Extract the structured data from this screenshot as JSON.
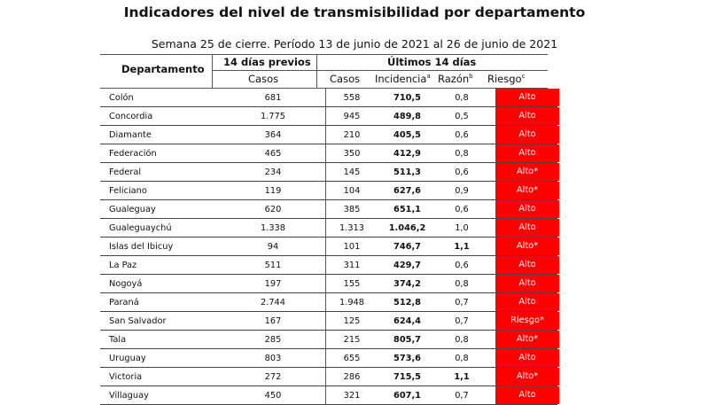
{
  "title": "Indicadores del nivel de transmisibilidad por departamento",
  "subtitle": "Semana 25 de cierre. Período 13 de junio de 2021 al 26 de junio de 2021",
  "headers": {
    "departamento": "Departamento",
    "previos": "14 días previos",
    "previos_casos": "Casos",
    "ultimos": "Últimos 14 días",
    "casos": "Casos",
    "incidencia": "Incidencia",
    "incidencia_sup": "a",
    "razon": "Razón",
    "razon_sup": "b",
    "riesgo": "Riesgo",
    "riesgo_sup": "c"
  },
  "rows": [
    {
      "departamento": "Colón",
      "previos": "681",
      "casos": "558",
      "incidencia": "710,5",
      "razon": "0,8",
      "razon_bold": false,
      "riesgo": "Alto"
    },
    {
      "departamento": "Concordia",
      "previos": "1.775",
      "casos": "945",
      "incidencia": "489,8",
      "razon": "0,5",
      "razon_bold": false,
      "riesgo": "Alto"
    },
    {
      "departamento": "Diamante",
      "previos": "364",
      "casos": "210",
      "incidencia": "405,5",
      "razon": "0,6",
      "razon_bold": false,
      "riesgo": "Alto"
    },
    {
      "departamento": "Federación",
      "previos": "465",
      "casos": "350",
      "incidencia": "412,9",
      "razon": "0,8",
      "razon_bold": false,
      "riesgo": "Alto"
    },
    {
      "departamento": "Federal",
      "previos": "234",
      "casos": "145",
      "incidencia": "511,3",
      "razon": "0,6",
      "razon_bold": false,
      "riesgo": "Alto*"
    },
    {
      "departamento": "Feliciano",
      "previos": "119",
      "casos": "104",
      "incidencia": "627,6",
      "razon": "0,9",
      "razon_bold": false,
      "riesgo": "Alto*"
    },
    {
      "departamento": "Gualeguay",
      "previos": "620",
      "casos": "385",
      "incidencia": "651,1",
      "razon": "0,6",
      "razon_bold": false,
      "riesgo": "Alto"
    },
    {
      "departamento": "Gualeguaychú",
      "previos": "1.338",
      "casos": "1.313",
      "incidencia": "1.046,2",
      "razon": "1,0",
      "razon_bold": false,
      "riesgo": "Alto"
    },
    {
      "departamento": "Islas del Ibicuy",
      "previos": "94",
      "casos": "101",
      "incidencia": "746,7",
      "razon": "1,1",
      "razon_bold": true,
      "riesgo": "Alto*"
    },
    {
      "departamento": "La Paz",
      "previos": "511",
      "casos": "311",
      "incidencia": "429,7",
      "razon": "0,6",
      "razon_bold": false,
      "riesgo": "Alto"
    },
    {
      "departamento": "Nogoyá",
      "previos": "197",
      "casos": "155",
      "incidencia": "374,2",
      "razon": "0,8",
      "razon_bold": false,
      "riesgo": "Alto"
    },
    {
      "departamento": "Paraná",
      "previos": "2.744",
      "casos": "1.948",
      "incidencia": "512,8",
      "razon": "0,7",
      "razon_bold": false,
      "riesgo": "Alto"
    },
    {
      "departamento": "San Salvador",
      "previos": "167",
      "casos": "125",
      "incidencia": "624,4",
      "razon": "0,7",
      "razon_bold": false,
      "riesgo": "Riesgo*"
    },
    {
      "departamento": "Tala",
      "previos": "285",
      "casos": "215",
      "incidencia": "805,7",
      "razon": "0,8",
      "razon_bold": false,
      "riesgo": "Alto*"
    },
    {
      "departamento": "Uruguay",
      "previos": "803",
      "casos": "655",
      "incidencia": "573,6",
      "razon": "0,8",
      "razon_bold": false,
      "riesgo": "Alto"
    },
    {
      "departamento": "Victoria",
      "previos": "272",
      "casos": "286",
      "incidencia": "715,5",
      "razon": "1,1",
      "razon_bold": true,
      "riesgo": "Alto*"
    },
    {
      "departamento": "Villaguay",
      "previos": "450",
      "casos": "321",
      "incidencia": "607,1",
      "razon": "0,7",
      "razon_bold": false,
      "riesgo": "Alto"
    }
  ],
  "colors": {
    "risk_bg": "#ff0000",
    "risk_text": "#ffffff"
  }
}
